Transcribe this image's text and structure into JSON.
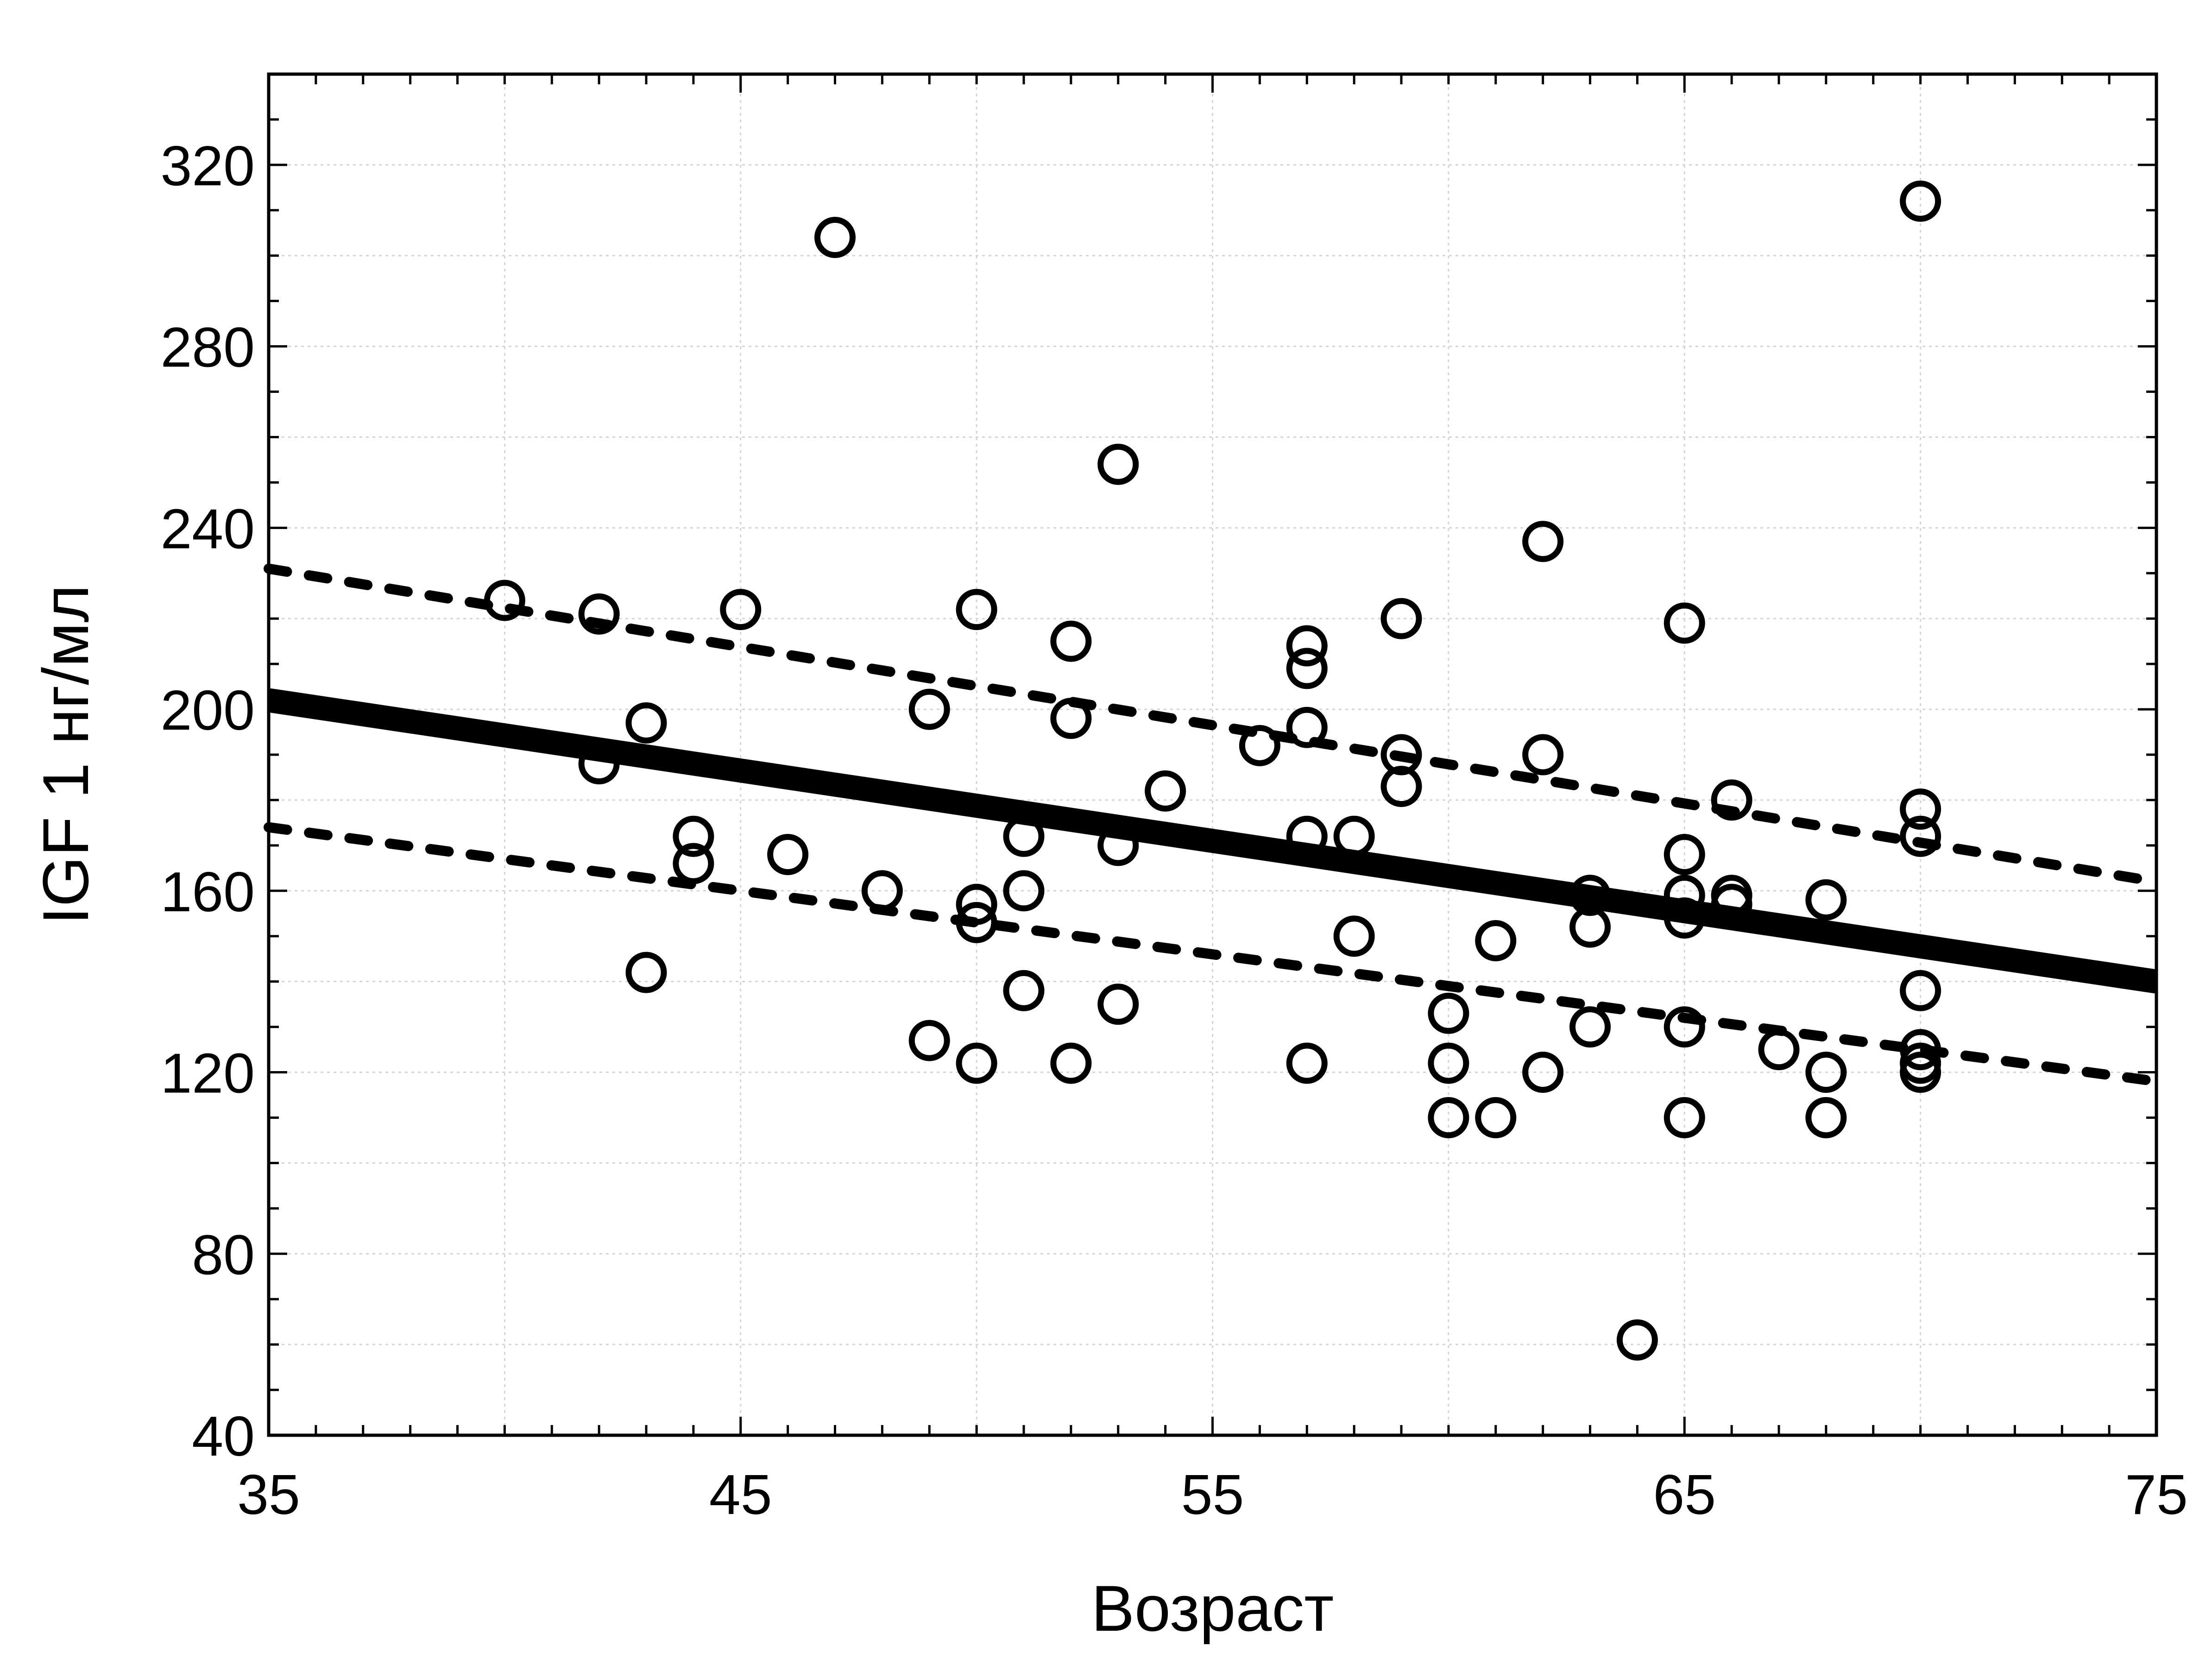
{
  "chart_data": {
    "type": "scatter",
    "xlabel": "Возраст",
    "ylabel": "IGF 1 нг/мл",
    "xlim": [
      35,
      75
    ],
    "ylim": [
      40,
      340
    ],
    "x_ticks": [
      "35",
      "45",
      "55",
      "65",
      "75"
    ],
    "y_ticks": [
      "40",
      "80",
      "120",
      "160",
      "200",
      "240",
      "280",
      "320"
    ],
    "grid": true,
    "points": [
      {
        "x": 40,
        "y": 224
      },
      {
        "x": 42,
        "y": 221
      },
      {
        "x": 42,
        "y": 188
      },
      {
        "x": 43,
        "y": 197
      },
      {
        "x": 43,
        "y": 142
      },
      {
        "x": 44,
        "y": 172
      },
      {
        "x": 44,
        "y": 166
      },
      {
        "x": 45,
        "y": 222
      },
      {
        "x": 46,
        "y": 168
      },
      {
        "x": 47,
        "y": 304
      },
      {
        "x": 48,
        "y": 160
      },
      {
        "x": 49,
        "y": 200
      },
      {
        "x": 49,
        "y": 127
      },
      {
        "x": 50,
        "y": 222
      },
      {
        "x": 50,
        "y": 157
      },
      {
        "x": 50,
        "y": 153
      },
      {
        "x": 50,
        "y": 122
      },
      {
        "x": 51,
        "y": 172
      },
      {
        "x": 51,
        "y": 160
      },
      {
        "x": 51,
        "y": 138
      },
      {
        "x": 52,
        "y": 215
      },
      {
        "x": 52,
        "y": 198
      },
      {
        "x": 52,
        "y": 122
      },
      {
        "x": 53,
        "y": 254
      },
      {
        "x": 53,
        "y": 170
      },
      {
        "x": 53,
        "y": 135
      },
      {
        "x": 54,
        "y": 182
      },
      {
        "x": 56,
        "y": 192
      },
      {
        "x": 57,
        "y": 214
      },
      {
        "x": 57,
        "y": 209
      },
      {
        "x": 57,
        "y": 196
      },
      {
        "x": 57,
        "y": 172
      },
      {
        "x": 57,
        "y": 122
      },
      {
        "x": 58,
        "y": 172
      },
      {
        "x": 58,
        "y": 150
      },
      {
        "x": 59,
        "y": 220
      },
      {
        "x": 59,
        "y": 190
      },
      {
        "x": 59,
        "y": 183
      },
      {
        "x": 60,
        "y": 133
      },
      {
        "x": 60,
        "y": 122
      },
      {
        "x": 60,
        "y": 110
      },
      {
        "x": 61,
        "y": 149
      },
      {
        "x": 61,
        "y": 110
      },
      {
        "x": 62,
        "y": 237
      },
      {
        "x": 62,
        "y": 190
      },
      {
        "x": 62,
        "y": 120
      },
      {
        "x": 63,
        "y": 159
      },
      {
        "x": 63,
        "y": 152
      },
      {
        "x": 63,
        "y": 130
      },
      {
        "x": 64,
        "y": 61
      },
      {
        "x": 65,
        "y": 219
      },
      {
        "x": 65,
        "y": 168
      },
      {
        "x": 65,
        "y": 159
      },
      {
        "x": 65,
        "y": 154
      },
      {
        "x": 65,
        "y": 130
      },
      {
        "x": 65,
        "y": 110
      },
      {
        "x": 66,
        "y": 180
      },
      {
        "x": 66,
        "y": 159
      },
      {
        "x": 66,
        "y": 157
      },
      {
        "x": 67,
        "y": 125
      },
      {
        "x": 68,
        "y": 158
      },
      {
        "x": 68,
        "y": 120
      },
      {
        "x": 68,
        "y": 110
      },
      {
        "x": 70,
        "y": 312
      },
      {
        "x": 70,
        "y": 178
      },
      {
        "x": 70,
        "y": 172
      },
      {
        "x": 70,
        "y": 138
      },
      {
        "x": 70,
        "y": 125
      },
      {
        "x": 70,
        "y": 122
      },
      {
        "x": 70,
        "y": 120
      }
    ],
    "regression_line": {
      "x": [
        35,
        75
      ],
      "y": [
        202,
        140
      ]
    },
    "confidence_upper": {
      "x": [
        35,
        75
      ],
      "y": [
        231,
        162
      ]
    },
    "confidence_lower": {
      "x": [
        35,
        75
      ],
      "y": [
        174,
        118
      ]
    }
  }
}
